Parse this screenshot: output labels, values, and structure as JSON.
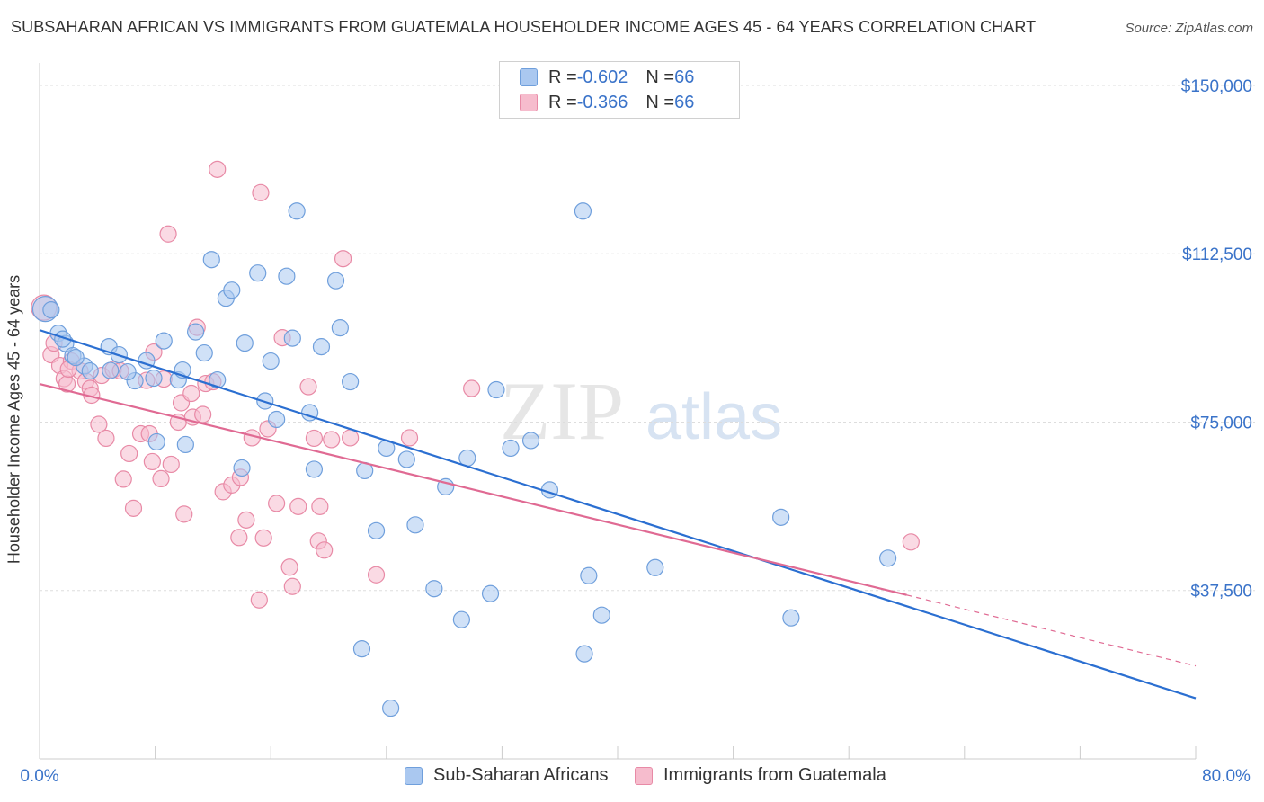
{
  "title": "SUBSAHARAN AFRICAN VS IMMIGRANTS FROM GUATEMALA HOUSEHOLDER INCOME AGES 45 - 64 YEARS CORRELATION CHART",
  "source": "Source: ZipAtlas.com",
  "watermark": {
    "zip": "ZIP",
    "atlas": "atlas"
  },
  "legend": {
    "rows": [
      {
        "r_label": "R = ",
        "r_value": "-0.602",
        "n_label": "N = ",
        "n_value": "66"
      },
      {
        "r_label": "R = ",
        "r_value": "-0.366",
        "n_label": "N = ",
        "n_value": "66"
      }
    ]
  },
  "bottom_legend": [
    "Sub-Saharan Africans",
    "Immigrants from Guatemala"
  ],
  "colors": {
    "blue_fill": "#aac8f0",
    "blue_stroke": "#6f9fdc",
    "blue_line": "#2b6fd1",
    "pink_fill": "#f6bccd",
    "pink_stroke": "#e88aa6",
    "pink_line": "#e06a93",
    "axis_text": "#3a73c9",
    "grid": "#dddddd"
  },
  "chart_data": {
    "type": "scatter",
    "title": "SUBSAHARAN AFRICAN VS IMMIGRANTS FROM GUATEMALA HOUSEHOLDER INCOME AGES 45 - 64 YEARS CORRELATION CHART",
    "xlabel": "",
    "ylabel": "Householder Income Ages 45 - 64 years",
    "xlim": [
      0,
      80
    ],
    "ylim": [
      0,
      155000
    ],
    "x_tick_labels": [
      "0.0%",
      "80.0%"
    ],
    "y_ticks": [
      37500,
      75000,
      112500,
      150000
    ],
    "y_tick_labels": [
      "$37,500",
      "$75,000",
      "$112,500",
      "$150,000"
    ],
    "grid": true,
    "legend_position": "top-center",
    "series": [
      {
        "name": "Sub-Saharan Africans",
        "r": -0.602,
        "n": 66,
        "trend": {
          "x": [
            0,
            80
          ],
          "y": [
            95500,
            13500
          ]
        },
        "points": [
          [
            0.4,
            100200
          ],
          [
            1.3,
            94800
          ],
          [
            1.8,
            92500
          ],
          [
            2.3,
            89800
          ],
          [
            3.1,
            87500
          ],
          [
            4.9,
            86500
          ],
          [
            4.8,
            91800
          ],
          [
            5.5,
            90000
          ],
          [
            6.6,
            84200
          ],
          [
            7.4,
            88700
          ],
          [
            7.9,
            84800
          ],
          [
            8.6,
            93100
          ],
          [
            9.6,
            84400
          ],
          [
            9.9,
            86600
          ],
          [
            10.8,
            95100
          ],
          [
            11.4,
            90400
          ],
          [
            12.3,
            84400
          ],
          [
            11.9,
            111200
          ],
          [
            12.9,
            102600
          ],
          [
            13.3,
            104400
          ],
          [
            14.2,
            92600
          ],
          [
            15.1,
            108200
          ],
          [
            15.6,
            79700
          ],
          [
            16.0,
            88600
          ],
          [
            16.4,
            75600
          ],
          [
            17.1,
            107500
          ],
          [
            17.5,
            93700
          ],
          [
            17.8,
            122000
          ],
          [
            18.7,
            77100
          ],
          [
            19.5,
            91800
          ],
          [
            20.5,
            106500
          ],
          [
            20.8,
            96000
          ],
          [
            21.5,
            84000
          ],
          [
            22.5,
            64200
          ],
          [
            23.3,
            50800
          ],
          [
            22.3,
            24500
          ],
          [
            24.0,
            69200
          ],
          [
            24.3,
            11300
          ],
          [
            25.4,
            66700
          ],
          [
            26.0,
            52100
          ],
          [
            27.3,
            37900
          ],
          [
            28.1,
            60600
          ],
          [
            29.2,
            31000
          ],
          [
            29.6,
            67000
          ],
          [
            31.2,
            36800
          ],
          [
            31.6,
            82200
          ],
          [
            32.6,
            69200
          ],
          [
            34.0,
            70900
          ],
          [
            35.3,
            59900
          ],
          [
            37.6,
            122000
          ],
          [
            37.7,
            23400
          ],
          [
            38.0,
            40800
          ],
          [
            38.9,
            32000
          ],
          [
            42.6,
            42600
          ],
          [
            51.3,
            53800
          ],
          [
            52.0,
            31400
          ],
          [
            58.7,
            44700
          ],
          [
            3.5,
            86400
          ],
          [
            6.1,
            86200
          ],
          [
            14.0,
            64800
          ],
          [
            10.1,
            70000
          ],
          [
            8.1,
            70600
          ],
          [
            2.5,
            89400
          ],
          [
            1.6,
            93500
          ],
          [
            19.0,
            64500
          ],
          [
            0.8,
            100000
          ]
        ]
      },
      {
        "name": "Immigrants from Guatemala",
        "r": -0.366,
        "n": 66,
        "trend": {
          "x": [
            0,
            60
          ],
          "y": [
            83500,
            36500
          ]
        },
        "trend_dashed": {
          "x": [
            60,
            80
          ],
          "y": [
            36500,
            20700
          ]
        },
        "points": [
          [
            0.3,
            100500
          ],
          [
            0.8,
            90000
          ],
          [
            1.0,
            92600
          ],
          [
            1.4,
            87600
          ],
          [
            1.7,
            84700
          ],
          [
            1.9,
            83500
          ],
          [
            2.2,
            88600
          ],
          [
            2.8,
            86400
          ],
          [
            3.2,
            84100
          ],
          [
            3.5,
            82500
          ],
          [
            3.6,
            81000
          ],
          [
            4.1,
            74500
          ],
          [
            4.3,
            85400
          ],
          [
            4.6,
            71400
          ],
          [
            5.1,
            86700
          ],
          [
            5.6,
            86400
          ],
          [
            5.8,
            62300
          ],
          [
            6.2,
            68000
          ],
          [
            6.5,
            55800
          ],
          [
            7.0,
            72400
          ],
          [
            7.4,
            84300
          ],
          [
            7.6,
            72400
          ],
          [
            7.8,
            66200
          ],
          [
            7.9,
            90600
          ],
          [
            8.4,
            62400
          ],
          [
            8.6,
            84600
          ],
          [
            8.9,
            116900
          ],
          [
            9.1,
            65600
          ],
          [
            9.6,
            75000
          ],
          [
            9.8,
            79300
          ],
          [
            10.0,
            54500
          ],
          [
            10.5,
            81400
          ],
          [
            10.6,
            76100
          ],
          [
            10.9,
            96100
          ],
          [
            11.3,
            76700
          ],
          [
            11.5,
            83600
          ],
          [
            12.3,
            131300
          ],
          [
            12.7,
            59500
          ],
          [
            13.3,
            61000
          ],
          [
            13.9,
            62700
          ],
          [
            13.8,
            49300
          ],
          [
            14.3,
            53200
          ],
          [
            14.7,
            71500
          ],
          [
            15.2,
            35400
          ],
          [
            15.3,
            126100
          ],
          [
            15.5,
            49200
          ],
          [
            15.8,
            73500
          ],
          [
            16.4,
            56900
          ],
          [
            16.8,
            93800
          ],
          [
            17.3,
            42700
          ],
          [
            17.5,
            38400
          ],
          [
            17.9,
            56200
          ],
          [
            18.6,
            82900
          ],
          [
            19.0,
            71400
          ],
          [
            19.3,
            48500
          ],
          [
            19.4,
            56200
          ],
          [
            19.7,
            46500
          ],
          [
            20.2,
            71100
          ],
          [
            21.0,
            111400
          ],
          [
            21.5,
            71500
          ],
          [
            23.3,
            41000
          ],
          [
            25.6,
            71500
          ],
          [
            29.9,
            82500
          ],
          [
            60.3,
            48300
          ],
          [
            2.0,
            86800
          ],
          [
            12.0,
            84000
          ]
        ]
      }
    ]
  }
}
